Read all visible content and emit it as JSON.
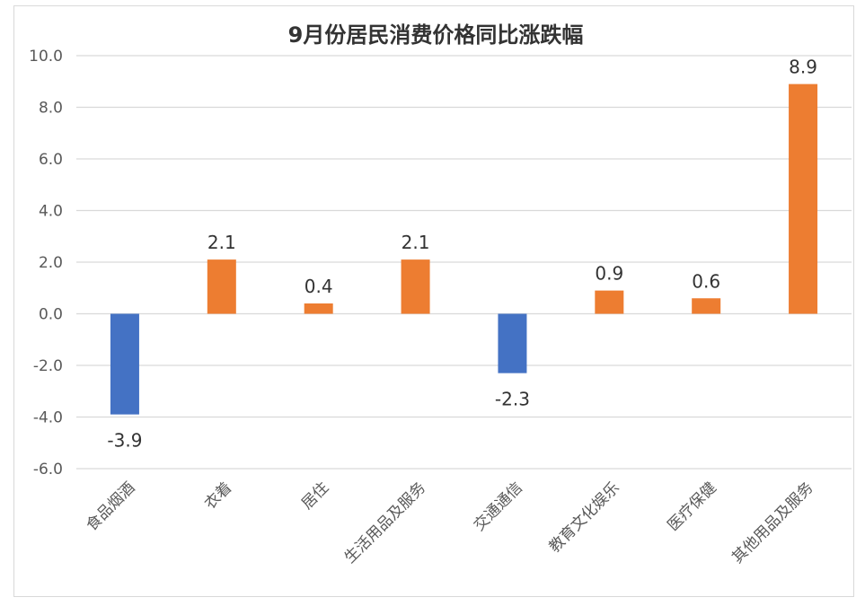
{
  "chart_data": {
    "type": "bar",
    "title": "9月份居民消费价格同比涨跌幅",
    "xlabel": "",
    "ylabel": "",
    "ylim": [
      -6.0,
      10.0
    ],
    "yticks": [
      "10.0",
      "8.0",
      "6.0",
      "4.0",
      "2.0",
      "0.0",
      "-2.0",
      "-4.0",
      "-6.0"
    ],
    "ytick_values": [
      10,
      8,
      6,
      4,
      2,
      0,
      -2,
      -4,
      -6
    ],
    "grid": true,
    "legend": "none",
    "categories": [
      "食品烟酒",
      "衣着",
      "居住",
      "生活用品及服务",
      "交通通信",
      "教育文化娱乐",
      "医疗保健",
      "其他用品及服务"
    ],
    "values": [
      -3.9,
      2.1,
      0.4,
      2.1,
      -2.3,
      0.9,
      0.6,
      8.9
    ],
    "data_labels": [
      "-3.9",
      "2.1",
      "0.4",
      "2.1",
      "-2.3",
      "0.9",
      "0.6",
      "8.9"
    ],
    "colors": {
      "positive": "#ed7d31",
      "negative": "#4472c4"
    }
  }
}
